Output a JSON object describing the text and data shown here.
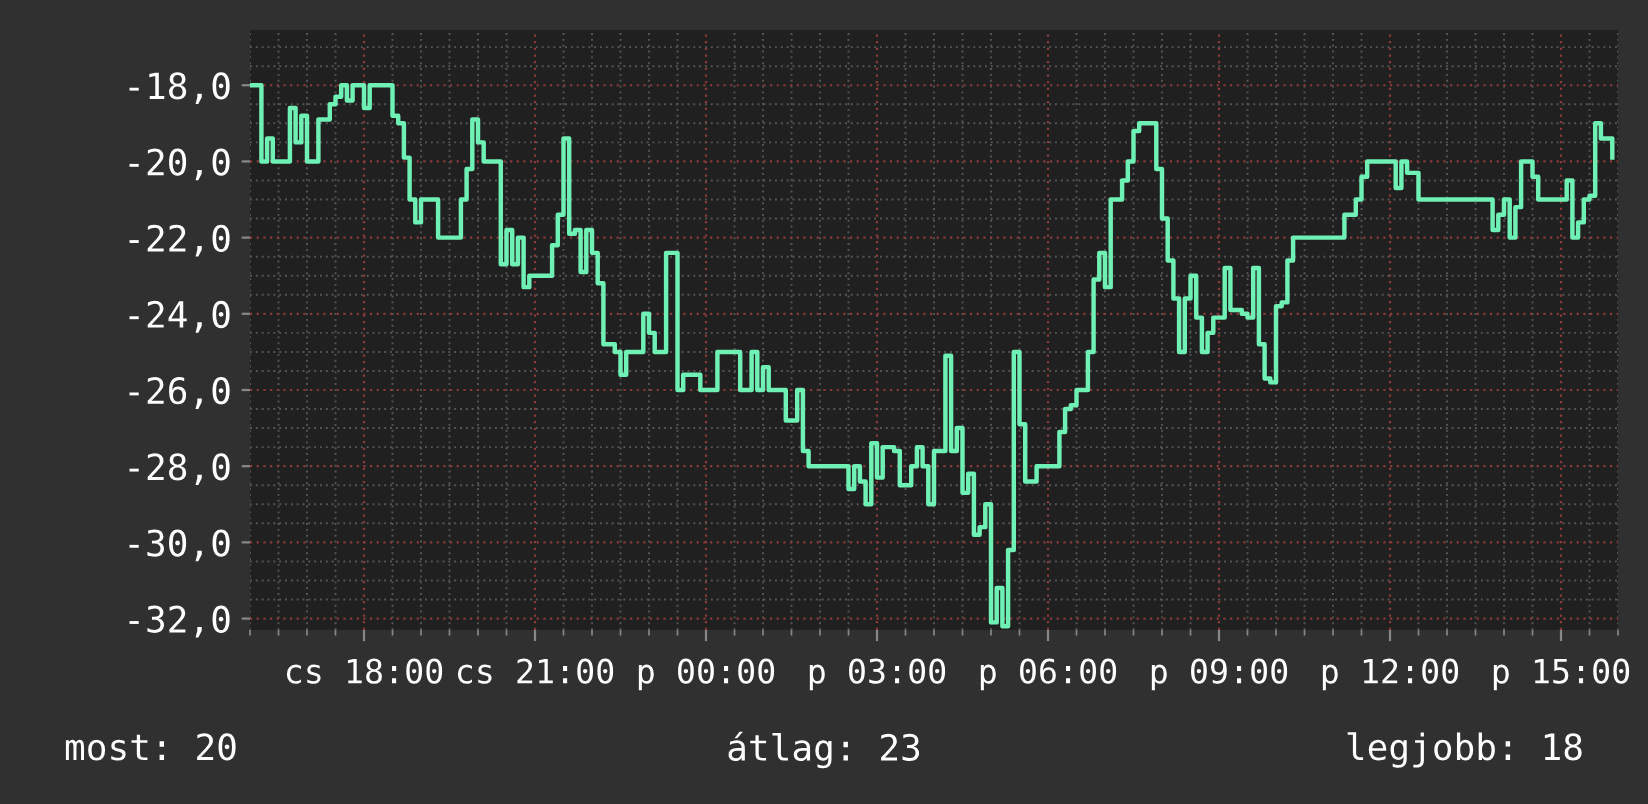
{
  "chart_data": {
    "type": "step",
    "categories": [
      null,
      null,
      null,
      null,
      null,
      null,
      null,
      null,
      null,
      null,
      null,
      null,
      null,
      null,
      null,
      null,
      null,
      null,
      null,
      null,
      "cs 18:00",
      null,
      null,
      null,
      null,
      null,
      null,
      null,
      null,
      null,
      null,
      null,
      null,
      null,
      null,
      null,
      null,
      null,
      null,
      null,
      null,
      null,
      null,
      null,
      null,
      null,
      null,
      null,
      null,
      null,
      "cs 21:00",
      null,
      null,
      null,
      null,
      null,
      null,
      null,
      null,
      null,
      null,
      null,
      null,
      null,
      null,
      null,
      null,
      null,
      null,
      null,
      null,
      null,
      null,
      null,
      null,
      null,
      null,
      null,
      null,
      null,
      "p 00:00",
      null,
      null,
      null,
      null,
      null,
      null,
      null,
      null,
      null,
      null,
      null,
      null,
      null,
      null,
      null,
      null,
      null,
      null,
      null,
      null,
      null,
      null,
      null,
      null,
      null,
      null,
      null,
      null,
      null,
      "p 03:00",
      null,
      null,
      null,
      null,
      null,
      null,
      null,
      null,
      null,
      null,
      null,
      null,
      null,
      null,
      null,
      null,
      null,
      null,
      null,
      null,
      null,
      null,
      null,
      null,
      null,
      null,
      null,
      null,
      null,
      "p 06:00",
      null,
      null,
      null,
      null,
      null,
      null,
      null,
      null,
      null,
      null,
      null,
      null,
      null,
      null,
      null,
      null,
      null,
      null,
      null,
      null,
      null,
      null,
      null,
      null,
      null,
      null,
      null,
      null,
      null,
      "p 09:00",
      null,
      null,
      null,
      null,
      null,
      null,
      null,
      null,
      null,
      null,
      null,
      null,
      null,
      null,
      null,
      null,
      null,
      null,
      null,
      null,
      null,
      null,
      null,
      null,
      null,
      null,
      null,
      null,
      null,
      "p 12:00",
      null,
      null,
      null,
      null,
      null,
      null,
      null,
      null,
      null,
      null,
      null,
      null,
      null,
      null,
      null,
      null,
      null,
      null,
      null,
      null,
      null,
      null,
      null,
      null,
      null,
      null,
      null,
      null,
      null,
      "p 15:00",
      null,
      null,
      null,
      null,
      null,
      null,
      null,
      null,
      null
    ],
    "values": [
      -18.0,
      -18.0,
      -20.0,
      -19.4,
      -20.0,
      -20.0,
      -20.0,
      -18.6,
      -19.5,
      -18.8,
      -20.0,
      -20.0,
      -18.9,
      -18.9,
      -18.5,
      -18.3,
      -18.0,
      -18.4,
      -18.0,
      -18.0,
      -18.6,
      -18.0,
      -18.0,
      -18.0,
      -18.0,
      -18.8,
      -19.0,
      -19.9,
      -21.0,
      -21.6,
      -21.0,
      -21.0,
      -21.0,
      -22.0,
      -22.0,
      -22.0,
      -22.0,
      -21.0,
      -20.2,
      -18.9,
      -19.5,
      -20.0,
      -20.0,
      -20.0,
      -22.7,
      -21.8,
      -22.7,
      -22.0,
      -23.3,
      -23.0,
      -23.0,
      -23.0,
      -23.0,
      -22.2,
      -21.4,
      -19.4,
      -21.9,
      -21.8,
      -22.9,
      -21.8,
      -22.4,
      -23.2,
      -24.8,
      -24.8,
      -25.0,
      -25.6,
      -25.0,
      -25.0,
      -25.0,
      -24.0,
      -24.5,
      -25.0,
      -25.0,
      -22.4,
      -22.4,
      -26.0,
      -25.6,
      -25.6,
      -25.6,
      -26.0,
      -26.0,
      -26.0,
      -25.0,
      -25.0,
      -25.0,
      -25.0,
      -26.0,
      -26.0,
      -25.0,
      -26.0,
      -25.4,
      -26.0,
      -26.0,
      -26.0,
      -26.8,
      -26.8,
      -26.0,
      -27.6,
      -28.0,
      -28.0,
      -28.0,
      -28.0,
      -28.0,
      -28.0,
      -28.0,
      -28.6,
      -28.0,
      -28.4,
      -29.0,
      -27.4,
      -28.3,
      -27.5,
      -27.5,
      -27.6,
      -28.5,
      -28.5,
      -28.0,
      -27.5,
      -28.0,
      -29.0,
      -27.6,
      -27.6,
      -25.1,
      -27.6,
      -27.0,
      -28.7,
      -28.2,
      -29.8,
      -29.6,
      -29.0,
      -32.1,
      -31.2,
      -32.2,
      -30.2,
      -25.0,
      -26.9,
      -28.4,
      -28.4,
      -28.0,
      -28.0,
      -28.0,
      -28.0,
      -27.1,
      -26.5,
      -26.4,
      -26.0,
      -26.0,
      -25.0,
      -23.1,
      -22.4,
      -23.3,
      -21.0,
      -21.0,
      -20.5,
      -20.0,
      -19.2,
      -19.0,
      -19.0,
      -19.0,
      -20.2,
      -21.5,
      -22.6,
      -23.6,
      -25.0,
      -23.6,
      -23.0,
      -24.1,
      -25.0,
      -24.5,
      -24.1,
      -24.1,
      -22.8,
      -23.9,
      -23.9,
      -24.0,
      -24.1,
      -22.8,
      -24.8,
      -25.7,
      -25.8,
      -23.8,
      -23.7,
      -22.6,
      -22.0,
      -22.0,
      -22.0,
      -22.0,
      -22.0,
      -22.0,
      -22.0,
      -22.0,
      -22.0,
      -21.4,
      -21.4,
      -21.0,
      -20.4,
      -20.0,
      -20.0,
      -20.0,
      -20.0,
      -20.0,
      -20.7,
      -20.0,
      -20.3,
      -20.3,
      -21.0,
      -21.0,
      -21.0,
      -21.0,
      -21.0,
      -21.0,
      -21.0,
      -21.0,
      -21.0,
      -21.0,
      -21.0,
      -21.0,
      -21.0,
      -21.8,
      -21.4,
      -21.0,
      -22.0,
      -21.2,
      -20.0,
      -20.0,
      -20.4,
      -21.0,
      -21.0,
      -21.0,
      -21.0,
      -21.0,
      -20.5,
      -22.0,
      -21.6,
      -21.0,
      -20.9,
      -19.0,
      -19.4,
      -19.4,
      -19.9
    ],
    "color": "#6ff0b4",
    "ylim": [
      -32.3,
      -16.55
    ],
    "yticks": [
      {
        "value": -32,
        "label": "-32,0"
      },
      {
        "value": -30,
        "label": "-30,0"
      },
      {
        "value": -28,
        "label": "-28,0"
      },
      {
        "value": -26,
        "label": "-26,0"
      },
      {
        "value": -24,
        "label": "-24,0"
      },
      {
        "value": -22,
        "label": "-22,0"
      },
      {
        "value": -20,
        "label": "-20,0"
      },
      {
        "value": -18,
        "label": "-18,0"
      }
    ],
    "grid": true,
    "annotations": [
      "most: 20",
      "átlag: 23",
      "legjobb: 18"
    ]
  }
}
